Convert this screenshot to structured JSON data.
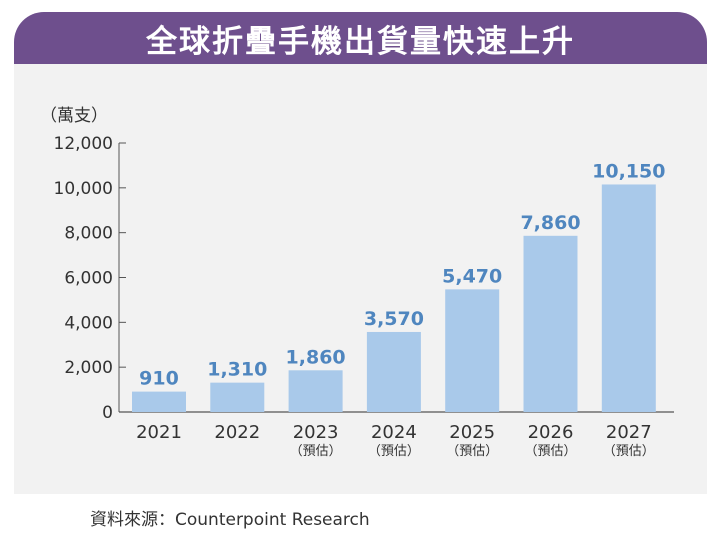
{
  "title": "全球折疊手機出貨量快速上升",
  "source": "資料來源：Counterpoint Research",
  "colors": {
    "banner": "#6e4f8d",
    "panel": "#f2f2f2",
    "bar": "#a9c9ea",
    "value_label": "#4f86bf",
    "axis_text": "#333333"
  },
  "chart_data": {
    "type": "bar",
    "ylabel": "（萬支）",
    "ylim": [
      0,
      12000
    ],
    "yticks": [
      "0",
      "2,000",
      "4,000",
      "6,000",
      "8,000",
      "10,000",
      "12,000"
    ],
    "categories": [
      "2021",
      "2022",
      "2023",
      "2024",
      "2025",
      "2026",
      "2027"
    ],
    "category_notes": [
      "",
      "",
      "（預估）",
      "（預估）",
      "（預估）",
      "（預估）",
      "（預估）"
    ],
    "values": [
      910,
      1310,
      1860,
      3570,
      5470,
      7860,
      10150
    ],
    "value_labels": [
      "910",
      "1,310",
      "1,860",
      "3,570",
      "5,470",
      "7,860",
      "10,150"
    ],
    "grid": false
  }
}
